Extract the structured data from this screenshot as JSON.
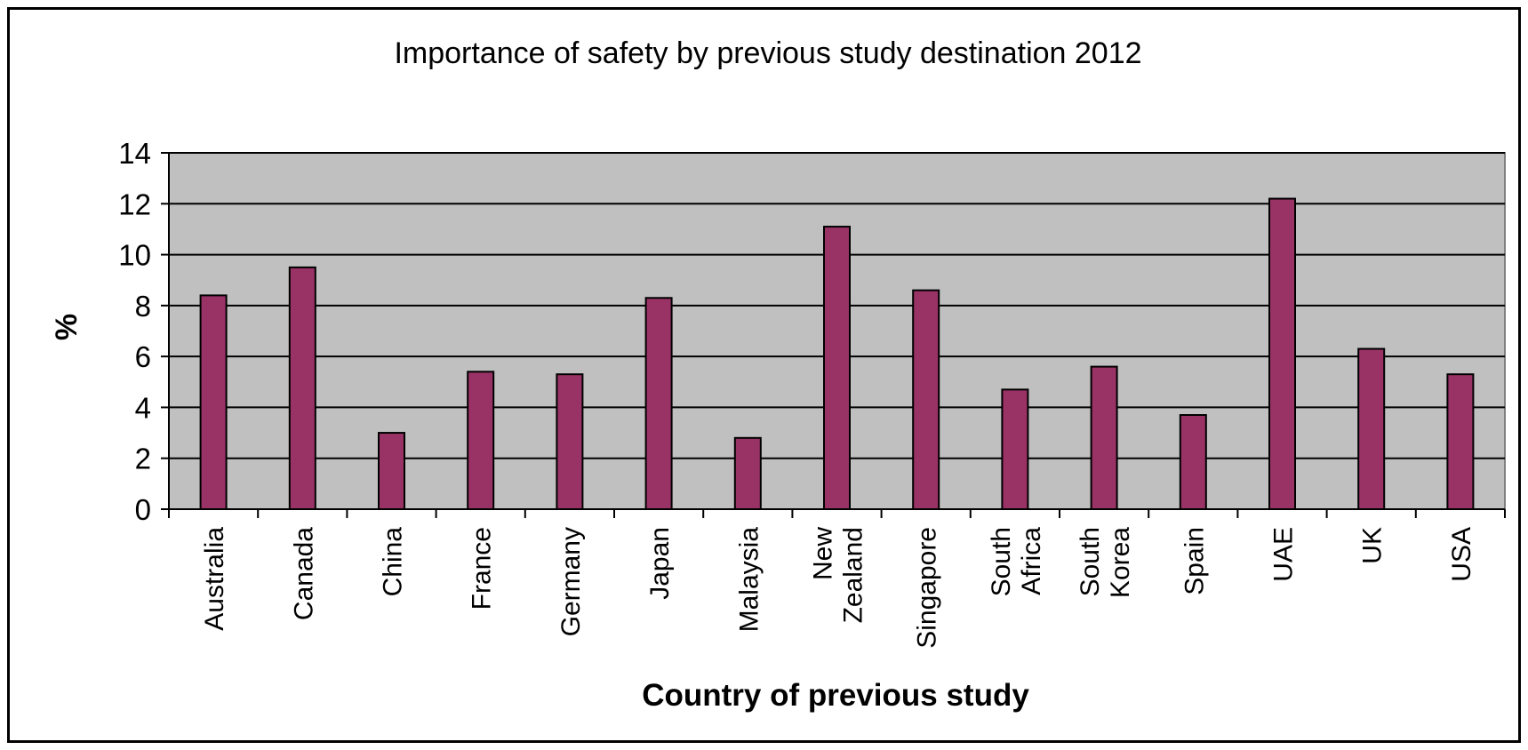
{
  "chart_data": {
    "type": "bar",
    "title": "Importance of safety by previous study destination 2012",
    "xlabel": "Country of previous study",
    "ylabel": "%",
    "ylim": [
      0,
      14
    ],
    "yticks": [
      0,
      2,
      4,
      6,
      8,
      10,
      12,
      14
    ],
    "grid": true,
    "legend": "none",
    "categories": [
      "Australia",
      "Canada",
      "China",
      "France",
      "Germany",
      "Japan",
      "Malaysia",
      "New Zealand",
      "Singapore",
      "South Africa",
      "South Korea",
      "Spain",
      "UAE",
      "UK",
      "USA"
    ],
    "category_label_lines": [
      [
        "Australia"
      ],
      [
        "Canada"
      ],
      [
        "China"
      ],
      [
        "France"
      ],
      [
        "Germany"
      ],
      [
        "Japan"
      ],
      [
        "Malaysia"
      ],
      [
        "New",
        "Zealand"
      ],
      [
        "Singapore"
      ],
      [
        "South",
        "Africa"
      ],
      [
        "South",
        "Korea"
      ],
      [
        "Spain"
      ],
      [
        "UAE"
      ],
      [
        "UK"
      ],
      [
        "USA"
      ]
    ],
    "values": [
      8.4,
      9.5,
      3.0,
      5.4,
      5.3,
      8.3,
      2.8,
      11.1,
      8.6,
      4.7,
      5.6,
      3.7,
      12.2,
      6.3,
      5.3
    ],
    "colors": {
      "bar": "#993366",
      "plot_background": "#c0c0c0",
      "gridline": "#000000"
    }
  }
}
